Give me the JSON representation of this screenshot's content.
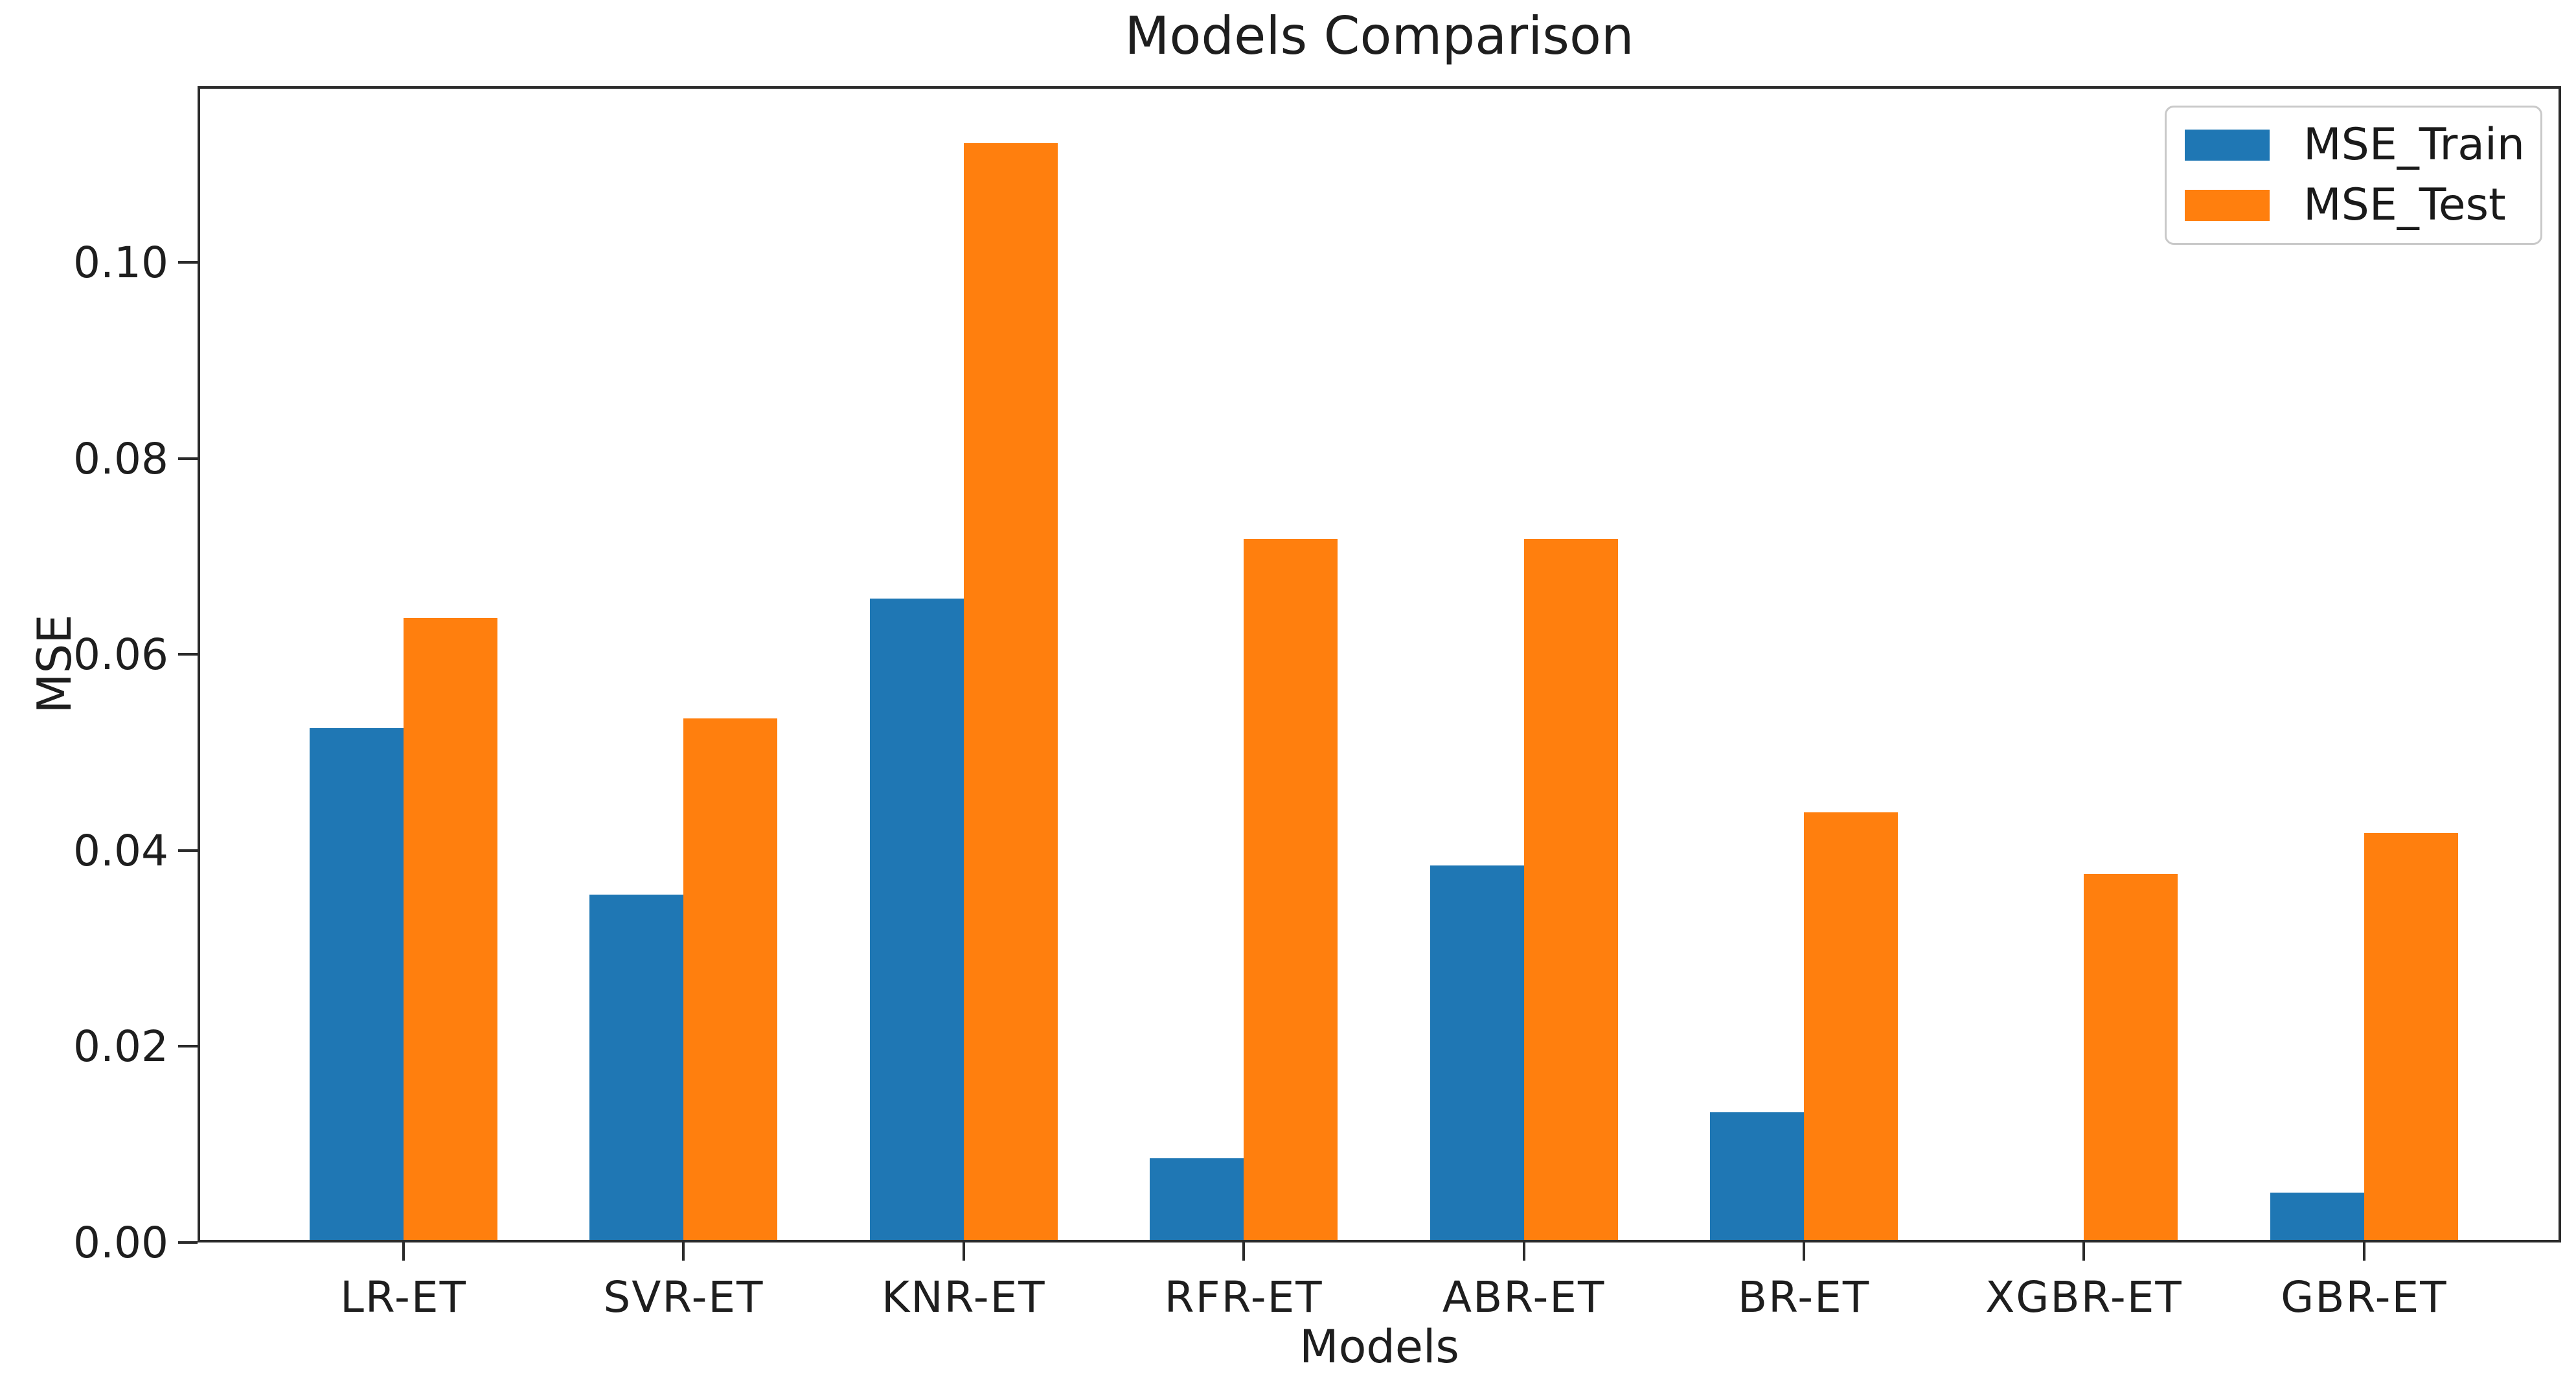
{
  "title": "Models Comparison",
  "chart_data": {
    "type": "bar",
    "title": "Models Comparison",
    "xlabel": "Models",
    "ylabel": "MSE",
    "categories": [
      "LR-ET",
      "SVR-ET",
      "KNR-ET",
      "RFR-ET",
      "ABR-ET",
      "BR-ET",
      "XGBR-ET",
      "GBR-ET"
    ],
    "series": [
      {
        "name": "MSE_Train",
        "color": "#1f77b4",
        "values": [
          0.0525,
          0.0355,
          0.0657,
          0.0086,
          0.0385,
          0.0133,
          0.0002,
          0.0051
        ]
      },
      {
        "name": "MSE_Test",
        "color": "#ff7f0e",
        "values": [
          0.0637,
          0.0535,
          0.1122,
          0.0718,
          0.0718,
          0.0439,
          0.0376,
          0.0418
        ]
      }
    ],
    "ylim": [
      0,
      0.118
    ],
    "yticks": [
      "0.00",
      "0.02",
      "0.04",
      "0.06",
      "0.08",
      "0.10"
    ],
    "ytick_step": 0.02,
    "grid": false,
    "legend_position": "upper right",
    "background": "#ffffff",
    "spine_color": "#2b2b2b"
  }
}
